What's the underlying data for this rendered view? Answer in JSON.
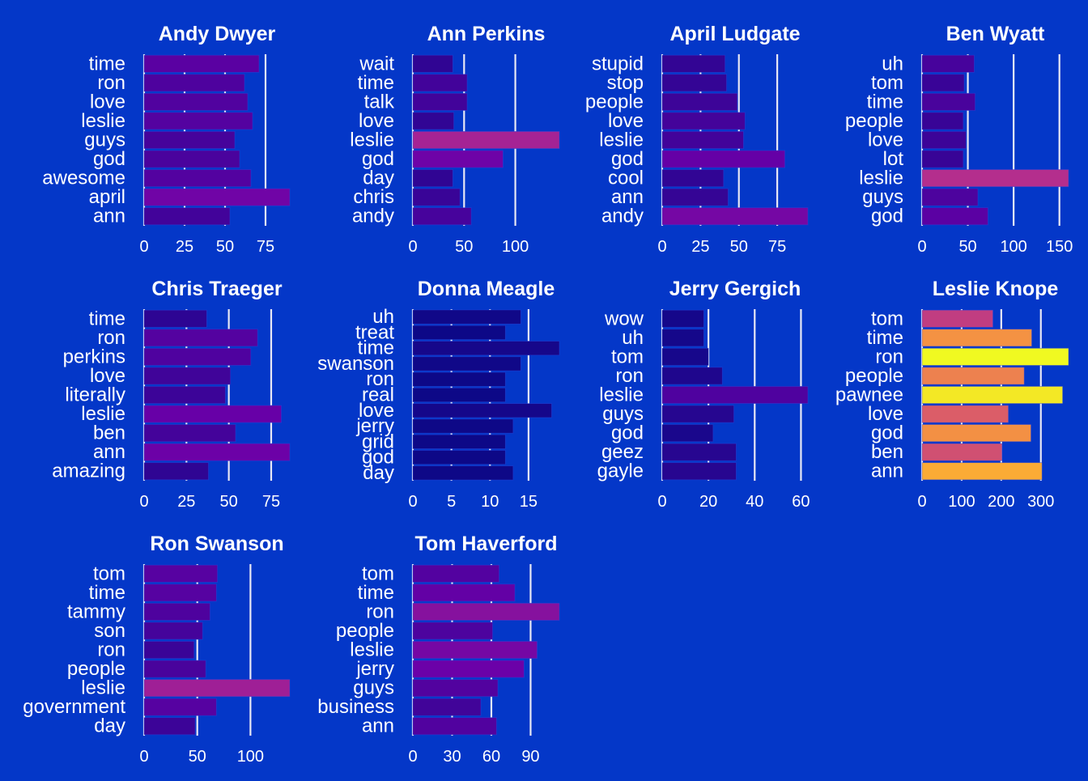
{
  "background": "#0437c8",
  "gridline_color": "#e8e8f4",
  "text_color": "#ffffff",
  "chart_data": [
    {
      "type": "bar",
      "orientation": "horizontal",
      "title": "Andy Dwyer",
      "categories": [
        "time",
        "ron",
        "love",
        "leslie",
        "guys",
        "god",
        "awesome",
        "april",
        "ann"
      ],
      "values": [
        71,
        62,
        64,
        67,
        56,
        59,
        66,
        90,
        53
      ],
      "xlim": [
        0,
        90
      ],
      "xticks": [
        0,
        25,
        50,
        75
      ],
      "xtick_labels": [
        "0",
        "25",
        "50",
        "75"
      ]
    },
    {
      "type": "bar",
      "orientation": "horizontal",
      "title": "Ann Perkins",
      "categories": [
        "wait",
        "time",
        "talk",
        "love",
        "leslie",
        "god",
        "day",
        "chris",
        "andy"
      ],
      "values": [
        39,
        53,
        53,
        40,
        143,
        88,
        39,
        46,
        57
      ],
      "xlim": [
        0,
        143
      ],
      "xticks": [
        0,
        50,
        100
      ],
      "xtick_labels": [
        "0",
        "50",
        "100"
      ]
    },
    {
      "type": "bar",
      "orientation": "horizontal",
      "title": "April Ludgate",
      "categories": [
        "stupid",
        "stop",
        "people",
        "love",
        "leslie",
        "god",
        "cool",
        "ann",
        "andy"
      ],
      "values": [
        41,
        42,
        49,
        54,
        53,
        80,
        40,
        43,
        95
      ],
      "xlim": [
        0,
        95
      ],
      "xticks": [
        0,
        25,
        50,
        75
      ],
      "xtick_labels": [
        "0",
        "25",
        "50",
        "75"
      ]
    },
    {
      "type": "bar",
      "orientation": "horizontal",
      "title": "Ben Wyatt",
      "categories": [
        "uh",
        "tom",
        "time",
        "people",
        "love",
        "lot",
        "leslie",
        "guys",
        "god"
      ],
      "values": [
        57,
        46,
        58,
        45,
        48,
        45,
        160,
        61,
        72
      ],
      "xlim": [
        0,
        160
      ],
      "xticks": [
        0,
        50,
        100,
        150
      ],
      "xtick_labels": [
        "0",
        "50",
        "100",
        "150"
      ]
    },
    {
      "type": "bar",
      "orientation": "horizontal",
      "title": "Chris Traeger",
      "categories": [
        "time",
        "ron",
        "perkins",
        "love",
        "literally",
        "leslie",
        "ben",
        "ann",
        "amazing"
      ],
      "values": [
        37,
        67,
        63,
        51,
        48,
        81,
        54,
        86,
        38
      ],
      "xlim": [
        0,
        86
      ],
      "xticks": [
        0,
        25,
        50,
        75
      ],
      "xtick_labels": [
        "0",
        "25",
        "50",
        "75"
      ]
    },
    {
      "type": "bar",
      "orientation": "horizontal",
      "title": "Donna Meagle",
      "categories": [
        "uh",
        "treat",
        "time",
        "swanson",
        "ron",
        "real",
        "love",
        "jerry",
        "grid",
        "god",
        "day"
      ],
      "values": [
        14,
        12,
        19,
        14,
        12,
        12,
        18,
        13,
        12,
        12,
        13
      ],
      "xlim": [
        0,
        19
      ],
      "xticks": [
        0,
        5,
        10,
        15
      ],
      "xtick_labels": [
        "0",
        "5",
        "10",
        "15"
      ]
    },
    {
      "type": "bar",
      "orientation": "horizontal",
      "title": "Jerry Gergich",
      "categories": [
        "wow",
        "uh",
        "tom",
        "ron",
        "leslie",
        "guys",
        "god",
        "geez",
        "gayle"
      ],
      "values": [
        18,
        18,
        20,
        26,
        63,
        31,
        22,
        32,
        32
      ],
      "xlim": [
        0,
        63
      ],
      "xticks": [
        0,
        20,
        40,
        60
      ],
      "xtick_labels": [
        "0",
        "20",
        "40",
        "60"
      ]
    },
    {
      "type": "bar",
      "orientation": "horizontal",
      "title": "Leslie Knope",
      "categories": [
        "tom",
        "time",
        "ron",
        "people",
        "pawnee",
        "love",
        "god",
        "ben",
        "ann"
      ],
      "values": [
        179,
        277,
        370,
        258,
        355,
        218,
        275,
        202,
        303
      ],
      "xlim": [
        0,
        370
      ],
      "xticks": [
        0,
        100,
        200,
        300
      ],
      "xtick_labels": [
        "0",
        "100",
        "200",
        "300"
      ]
    },
    {
      "type": "bar",
      "orientation": "horizontal",
      "title": "Ron Swanson",
      "categories": [
        "tom",
        "time",
        "tammy",
        "son",
        "ron",
        "people",
        "leslie",
        "government",
        "day"
      ],
      "values": [
        69,
        68,
        62,
        55,
        47,
        58,
        137,
        68,
        48
      ],
      "xlim": [
        0,
        137
      ],
      "xticks": [
        0,
        50,
        100
      ],
      "xtick_labels": [
        "0",
        "50",
        "100"
      ]
    },
    {
      "type": "bar",
      "orientation": "horizontal",
      "title": "Tom Haverford",
      "categories": [
        "tom",
        "time",
        "ron",
        "people",
        "leslie",
        "jerry",
        "guys",
        "business",
        "ann"
      ],
      "values": [
        66,
        78,
        112,
        61,
        95,
        85,
        65,
        52,
        64
      ],
      "xlim": [
        0,
        112
      ],
      "xticks": [
        0,
        30,
        60,
        90
      ],
      "xtick_labels": [
        "0",
        "30",
        "60",
        "90"
      ]
    }
  ],
  "color_scale": {
    "min": 12,
    "max": 370,
    "stops": [
      "#0d0887",
      "#6a00a8",
      "#b12a90",
      "#e16462",
      "#fca636",
      "#f0f921"
    ]
  }
}
